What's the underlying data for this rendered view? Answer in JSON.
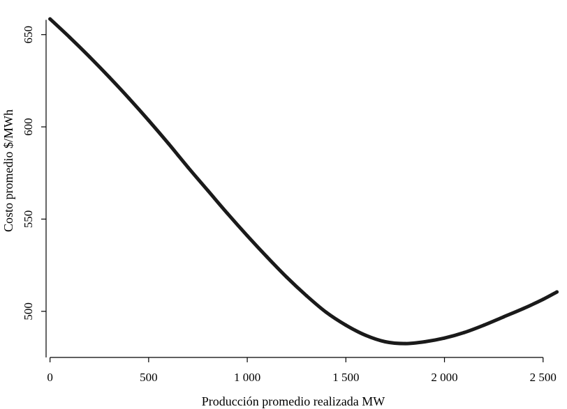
{
  "chart_data": {
    "type": "line",
    "title": "",
    "xlabel": "Producción promedio realizada MW",
    "ylabel": "Costo promedio $/MWh",
    "xlim": [
      -20,
      2600
    ],
    "ylim": [
      475,
      665
    ],
    "xticks": [
      {
        "value": 0,
        "label": "0"
      },
      {
        "value": 500,
        "label": "500"
      },
      {
        "value": 1000,
        "label": "1 000"
      },
      {
        "value": 1500,
        "label": "1 500"
      },
      {
        "value": 2000,
        "label": "2 000"
      },
      {
        "value": 2500,
        "label": "2 500"
      }
    ],
    "yticks": [
      {
        "value": 500,
        "label": "500"
      },
      {
        "value": 550,
        "label": "550"
      },
      {
        "value": 600,
        "label": "600"
      },
      {
        "value": 650,
        "label": "650"
      }
    ],
    "grid": false,
    "series": [
      {
        "color": "#1a1a1a",
        "x": [
          0,
          100,
          200,
          300,
          400,
          500,
          600,
          700,
          800,
          900,
          1000,
          1100,
          1200,
          1300,
          1400,
          1500,
          1600,
          1700,
          1800,
          1900,
          2000,
          2100,
          2200,
          2300,
          2400,
          2500,
          2570
        ],
        "y": [
          658.5,
          648.5,
          638,
          627,
          615.5,
          603.5,
          591,
          578,
          565.5,
          553,
          541,
          529.5,
          518.5,
          508.5,
          499.5,
          492.5,
          487,
          483.5,
          482.5,
          483.5,
          485.5,
          488.5,
          492.5,
          497,
          501.5,
          506.5,
          510.5
        ]
      }
    ]
  }
}
